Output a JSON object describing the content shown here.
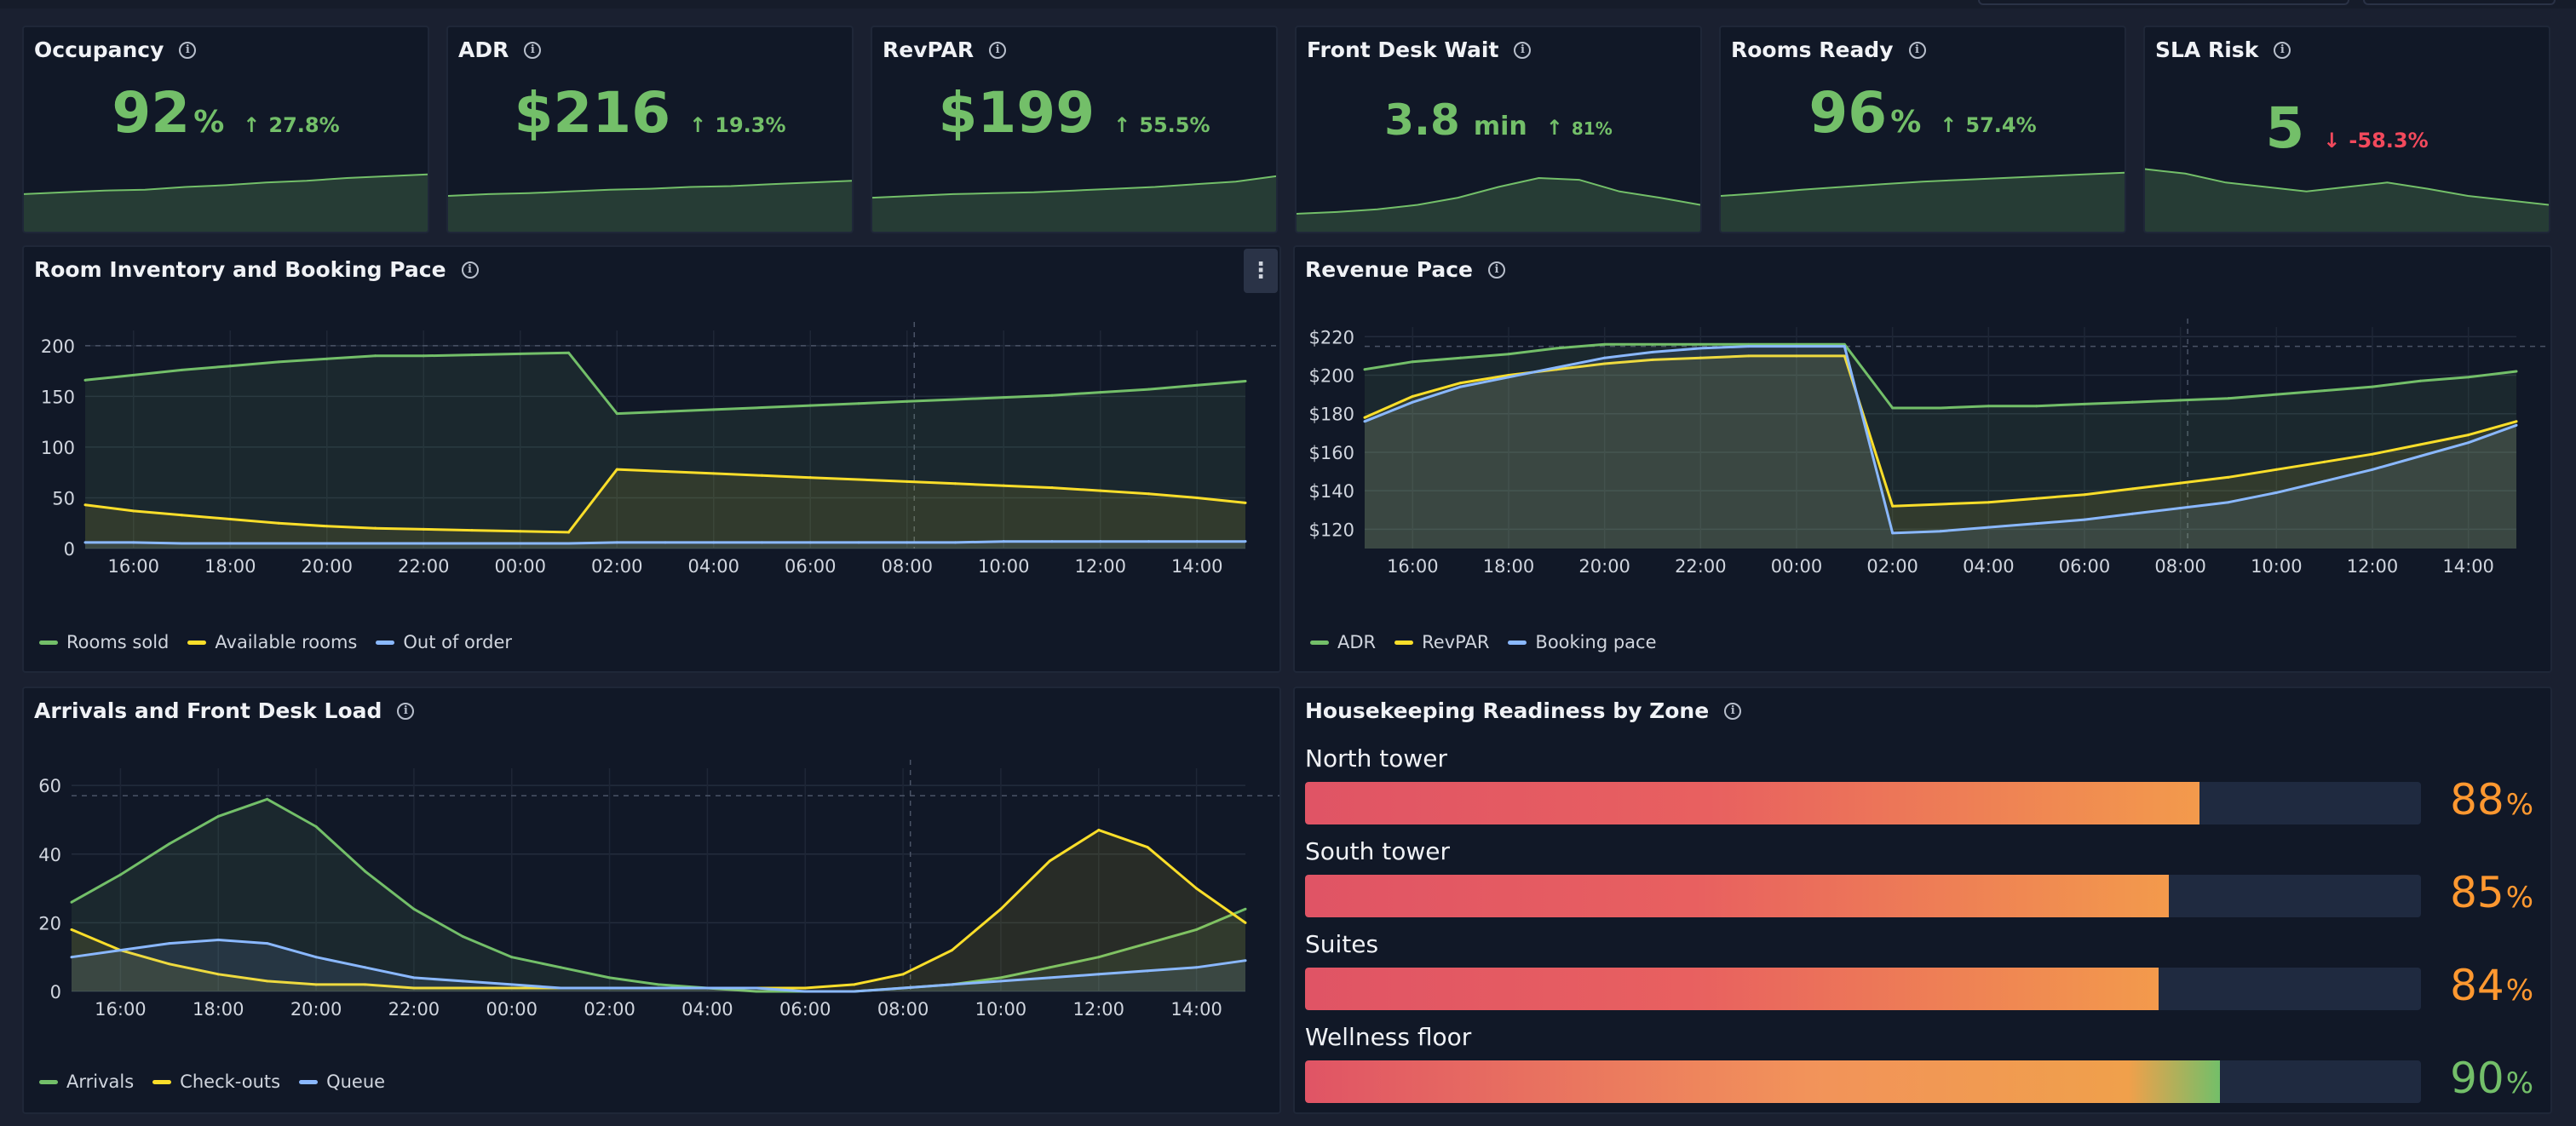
{
  "stats": [
    {
      "title": "Occupancy",
      "value": "92",
      "unit": "%",
      "delta": "27.8%",
      "direction": "up",
      "color": "#73bf69",
      "spark": [
        0.42,
        0.44,
        0.46,
        0.47,
        0.5,
        0.52,
        0.55,
        0.57,
        0.6,
        0.62,
        0.64
      ]
    },
    {
      "title": "ADR",
      "value": "$216",
      "unit": "",
      "delta": "19.3%",
      "direction": "up",
      "color": "#73bf69",
      "spark": [
        0.4,
        0.42,
        0.43,
        0.45,
        0.47,
        0.48,
        0.5,
        0.51,
        0.53,
        0.55,
        0.57
      ]
    },
    {
      "title": "RevPAR",
      "value": "$199",
      "unit": "",
      "delta": "55.5%",
      "direction": "up",
      "color": "#73bf69",
      "spark": [
        0.38,
        0.4,
        0.42,
        0.43,
        0.44,
        0.46,
        0.48,
        0.5,
        0.53,
        0.56,
        0.62
      ]
    },
    {
      "title": "Front Desk Wait",
      "value": "3.8",
      "unit": "min",
      "delta": "81%",
      "direction": "up",
      "color": "#73bf69",
      "spark": [
        0.2,
        0.22,
        0.25,
        0.3,
        0.38,
        0.5,
        0.6,
        0.58,
        0.45,
        0.38,
        0.3
      ]
    },
    {
      "title": "Rooms Ready",
      "value": "96",
      "unit": "%",
      "delta": "57.4%",
      "direction": "up",
      "color": "#73bf69",
      "spark": [
        0.4,
        0.43,
        0.47,
        0.5,
        0.53,
        0.56,
        0.58,
        0.6,
        0.62,
        0.64,
        0.66
      ]
    },
    {
      "title": "SLA Risk",
      "value": "5",
      "unit": "",
      "delta": "-58.3%",
      "direction": "down",
      "color": "#73bf69",
      "delta_color": "#f2495c",
      "spark": [
        0.7,
        0.65,
        0.55,
        0.5,
        0.45,
        0.5,
        0.55,
        0.48,
        0.4,
        0.35,
        0.3
      ]
    }
  ],
  "panels": {
    "inventory": {
      "title": "Room Inventory and Booking Pace",
      "menu": "⋮"
    },
    "revenue": {
      "title": "Revenue Pace"
    },
    "arrivals": {
      "title": "Arrivals and Front Desk Load"
    },
    "housekeeping": {
      "title": "Housekeeping Readiness by Zone"
    }
  },
  "chart_data": [
    {
      "type": "area",
      "title": "Room Inventory and Booking Pace",
      "x": [
        "15:00",
        "16:00",
        "17:00",
        "18:00",
        "19:00",
        "20:00",
        "21:00",
        "22:00",
        "23:00",
        "00:00",
        "01:00",
        "02:00",
        "03:00",
        "04:00",
        "05:00",
        "06:00",
        "07:00",
        "08:00",
        "09:00",
        "10:00",
        "11:00",
        "12:00",
        "13:00",
        "14:00",
        "15:00"
      ],
      "x_ticks": [
        "16:00",
        "18:00",
        "20:00",
        "22:00",
        "00:00",
        "02:00",
        "04:00",
        "06:00",
        "08:00",
        "10:00",
        "12:00",
        "14:00"
      ],
      "y_ticks": [
        0,
        50,
        100,
        150,
        200
      ],
      "ylim": [
        0,
        215
      ],
      "series": [
        {
          "name": "Rooms sold",
          "color": "#73bf69",
          "values": [
            166,
            171,
            176,
            180,
            184,
            187,
            190,
            190,
            191,
            192,
            193,
            133,
            135,
            137,
            139,
            141,
            143,
            145,
            147,
            149,
            151,
            154,
            157,
            161,
            165
          ]
        },
        {
          "name": "Available rooms",
          "color": "#fade2a",
          "values": [
            43,
            37,
            33,
            29,
            25,
            22,
            20,
            19,
            18,
            17,
            16,
            78,
            76,
            74,
            72,
            70,
            68,
            66,
            64,
            62,
            60,
            57,
            54,
            50,
            45
          ]
        },
        {
          "name": "Out of order",
          "color": "#8ab8ff",
          "values": [
            6,
            6,
            5,
            5,
            5,
            5,
            5,
            5,
            5,
            5,
            5,
            6,
            6,
            6,
            6,
            6,
            6,
            6,
            6,
            7,
            7,
            7,
            7,
            7,
            7
          ]
        }
      ]
    },
    {
      "type": "area",
      "title": "Revenue Pace",
      "x": [
        "15:00",
        "16:00",
        "17:00",
        "18:00",
        "19:00",
        "20:00",
        "21:00",
        "22:00",
        "23:00",
        "00:00",
        "01:00",
        "02:00",
        "03:00",
        "04:00",
        "05:00",
        "06:00",
        "07:00",
        "08:00",
        "09:00",
        "10:00",
        "11:00",
        "12:00",
        "13:00",
        "14:00",
        "15:00"
      ],
      "x_ticks": [
        "16:00",
        "18:00",
        "20:00",
        "22:00",
        "00:00",
        "02:00",
        "04:00",
        "06:00",
        "08:00",
        "10:00",
        "12:00",
        "14:00"
      ],
      "y_ticks": [
        "$120",
        "$140",
        "$160",
        "$180",
        "$200",
        "$220"
      ],
      "ylim": [
        110,
        225
      ],
      "series": [
        {
          "name": "ADR",
          "color": "#73bf69",
          "values": [
            203,
            207,
            209,
            211,
            214,
            216,
            216,
            216,
            216,
            216,
            216,
            183,
            183,
            184,
            184,
            185,
            186,
            187,
            188,
            190,
            192,
            194,
            197,
            199,
            202
          ]
        },
        {
          "name": "RevPAR",
          "color": "#fade2a",
          "values": [
            178,
            189,
            196,
            200,
            203,
            206,
            208,
            209,
            210,
            210,
            210,
            132,
            133,
            134,
            136,
            138,
            141,
            144,
            147,
            151,
            155,
            159,
            164,
            169,
            176
          ]
        },
        {
          "name": "Booking pace",
          "color": "#8ab8ff",
          "values": [
            176,
            186,
            194,
            199,
            204,
            209,
            212,
            214,
            215,
            215,
            215,
            118,
            119,
            121,
            123,
            125,
            128,
            131,
            134,
            139,
            145,
            151,
            158,
            165,
            174
          ]
        }
      ]
    },
    {
      "type": "area",
      "title": "Arrivals and Front Desk Load",
      "x": [
        "15:00",
        "16:00",
        "17:00",
        "18:00",
        "19:00",
        "20:00",
        "21:00",
        "22:00",
        "23:00",
        "00:00",
        "01:00",
        "02:00",
        "03:00",
        "04:00",
        "05:00",
        "06:00",
        "07:00",
        "08:00",
        "09:00",
        "10:00",
        "11:00",
        "12:00",
        "13:00",
        "14:00",
        "15:00"
      ],
      "x_ticks": [
        "16:00",
        "18:00",
        "20:00",
        "22:00",
        "00:00",
        "02:00",
        "04:00",
        "06:00",
        "08:00",
        "10:00",
        "12:00",
        "14:00"
      ],
      "y_ticks": [
        0,
        20,
        40,
        60
      ],
      "ylim": [
        0,
        65
      ],
      "series": [
        {
          "name": "Arrivals",
          "color": "#73bf69",
          "values": [
            26,
            34,
            43,
            51,
            56,
            48,
            35,
            24,
            16,
            10,
            7,
            4,
            2,
            1,
            0,
            0,
            0,
            1,
            2,
            4,
            7,
            10,
            14,
            18,
            24
          ]
        },
        {
          "name": "Check-outs",
          "color": "#fade2a",
          "values": [
            18,
            12,
            8,
            5,
            3,
            2,
            2,
            1,
            1,
            1,
            1,
            1,
            1,
            1,
            1,
            1,
            2,
            5,
            12,
            24,
            38,
            47,
            42,
            30,
            20
          ]
        },
        {
          "name": "Queue",
          "color": "#8ab8ff",
          "values": [
            10,
            12,
            14,
            15,
            14,
            10,
            7,
            4,
            3,
            2,
            1,
            1,
            1,
            1,
            1,
            0,
            0,
            1,
            2,
            3,
            4,
            5,
            6,
            7,
            9
          ]
        }
      ]
    },
    {
      "type": "bar",
      "title": "Housekeeping Readiness by Zone",
      "categories": [
        "North tower",
        "South tower",
        "Suites",
        "Wellness floor"
      ],
      "values": [
        88,
        85,
        84,
        90
      ],
      "unit": "%",
      "xlim": [
        0,
        100
      ],
      "colors": [
        "#ff9830",
        "#ff9830",
        "#ff9830",
        "#73bf69"
      ]
    }
  ]
}
